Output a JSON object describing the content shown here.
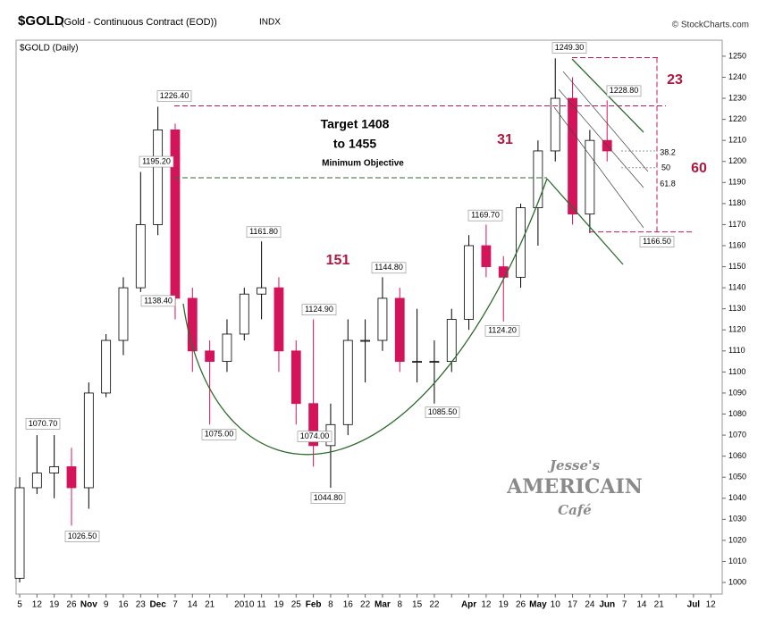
{
  "chart_data": {
    "type": "candlestick",
    "title": "$GOLD",
    "subtitle": "(Gold - Continuous Contract (EOD))",
    "exchange": "INDX",
    "source": "© StockCharts.com",
    "panel_label": "$GOLD (Daily)",
    "categories": [
      "5",
      "12",
      "19",
      "26",
      "Nov",
      "9",
      "16",
      "23",
      "Dec",
      "7",
      "14",
      "21",
      null,
      "2010",
      "11",
      "19",
      "25",
      "Feb",
      "8",
      "16",
      "22",
      "Mar",
      "8",
      "15",
      "22",
      null,
      "Apr",
      "12",
      "19",
      "26",
      "May",
      "10",
      "17",
      "24",
      "Jun",
      "7",
      "14",
      "21",
      null,
      "Jul",
      "12"
    ],
    "open": [
      1002,
      1045,
      1052,
      1055,
      1045,
      1090,
      1115,
      1140,
      1170,
      1215,
      1135,
      1110,
      1105,
      1118,
      1137,
      1140,
      1110,
      1085,
      1065,
      1075,
      1115,
      1115,
      1135,
      1105,
      1105,
      1105,
      1125,
      1160,
      1150,
      1145,
      1178,
      1205,
      1230,
      1175,
      1210,
      null,
      null,
      null,
      null,
      null,
      null
    ],
    "high": [
      1050,
      1070,
      1070,
      1064,
      1095,
      1118,
      1145,
      1195,
      1226,
      1218,
      1140,
      1115,
      1125,
      1140,
      1162,
      1145,
      1115,
      1125,
      1085,
      1125,
      1125,
      1145,
      1140,
      1130,
      1115,
      1130,
      1165,
      1170,
      1155,
      1180,
      1210,
      1249,
      1240,
      1215,
      1229,
      null,
      null,
      null,
      null,
      null,
      null
    ],
    "low": [
      1000,
      1042,
      1040,
      1027,
      1035,
      1088,
      1108,
      1138,
      1165,
      1125,
      1100,
      1075,
      1100,
      1115,
      1125,
      1100,
      1075,
      1055,
      1045,
      1070,
      1095,
      1110,
      1100,
      1095,
      1085,
      1100,
      1120,
      1145,
      1124,
      1140,
      1160,
      1200,
      1170,
      1166,
      1200,
      null,
      null,
      null,
      null,
      null,
      null
    ],
    "close": [
      1045,
      1052,
      1055,
      1045,
      1090,
      1115,
      1140,
      1170,
      1215,
      1135,
      1110,
      1105,
      1118,
      1137,
      1140,
      1110,
      1085,
      1065,
      1075,
      1115,
      1115,
      1135,
      1105,
      1105,
      1105,
      1125,
      1160,
      1150,
      1145,
      1178,
      1205,
      1230,
      1175,
      1210,
      1205,
      null,
      null,
      null,
      null,
      null,
      null
    ],
    "up_color": "#ffffff",
    "down_color": "#d4145a",
    "ylim": [
      994.5,
      1257.6
    ],
    "yticks": [
      1000,
      1010,
      1020,
      1030,
      1040,
      1050,
      1060,
      1070,
      1080,
      1090,
      1100,
      1110,
      1120,
      1130,
      1140,
      1150,
      1160,
      1170,
      1180,
      1190,
      1200,
      1210,
      1220,
      1230,
      1240,
      1250
    ],
    "price_labels": [
      {
        "value": 1070.7,
        "label": "1070.70"
      },
      {
        "value": 1026.5,
        "label": "1026.50"
      },
      {
        "value": 1195.2,
        "label": "1195.20"
      },
      {
        "value": 1138.4,
        "label": "1138.40"
      },
      {
        "value": 1226.4,
        "label": "1226.40"
      },
      {
        "value": 1161.8,
        "label": "1161.80"
      },
      {
        "value": 1075,
        "label": "1075.00"
      },
      {
        "value": 1124.9,
        "label": "1124.90"
      },
      {
        "value": 1074,
        "label": "1074.00"
      },
      {
        "value": 1044.8,
        "label": "1044.80"
      },
      {
        "value": 1144.8,
        "label": "1144.80"
      },
      {
        "value": 1085.5,
        "label": "1085.50"
      },
      {
        "value": 1124.2,
        "label": "1124.20"
      },
      {
        "value": 1169.7,
        "label": "1169.70"
      },
      {
        "value": 1249.3,
        "label": "1249.30"
      },
      {
        "value": 1228.8,
        "label": "1228.80"
      },
      {
        "value": 1166.5,
        "label": "1166.50"
      }
    ],
    "annotations": [
      "Target 1408",
      "to 1455",
      "Minimum Objective",
      "151",
      "31",
      "23",
      "60",
      "38.2",
      "50",
      "61.8"
    ],
    "logo": [
      "Jesse's",
      "AMERICAIN",
      "Café"
    ]
  }
}
